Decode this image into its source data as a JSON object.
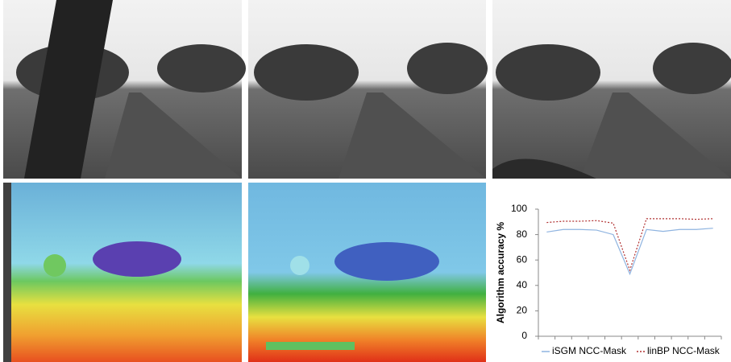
{
  "chart_data": {
    "type": "line",
    "y_label": "Algorithm accuracy %",
    "categories": [
      null,
      null,
      null,
      null,
      null,
      null,
      null,
      null,
      null,
      null,
      null
    ],
    "series": [
      {
        "name": "iSGM NCC-Mask",
        "color": "#8fb4e0",
        "dash": "solid",
        "values": [
          82,
          84,
          84,
          83.5,
          80,
          49,
          84,
          82.5,
          84,
          84,
          85
        ]
      },
      {
        "name": "linBP NCC-Mask",
        "color": "#b03030",
        "dash": "dotted",
        "values": [
          89.5,
          90.5,
          90.5,
          91,
          89,
          52,
          92.5,
          92.5,
          92.5,
          92,
          92.5
        ]
      }
    ],
    "ylim": [
      0,
      100
    ],
    "yticks": [
      0,
      20,
      40,
      60,
      80,
      100
    ],
    "legend": "bottom"
  }
}
